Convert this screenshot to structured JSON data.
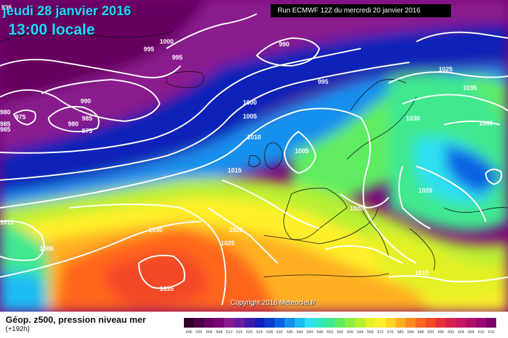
{
  "header": {
    "date": "jeudi 28 janvier 2016",
    "time": "13:00 locale",
    "run": "Run ECMWF 12Z du mercredi 20 janvier 2016"
  },
  "map": {
    "copyright": "Copyright 2016 Meteociel.fr",
    "pressure_labels": [
      "995",
      "1000",
      "995",
      "990",
      "995",
      "1025",
      "990",
      "985",
      "975",
      "980",
      "985",
      "975",
      "1000",
      "1005",
      "1035",
      "1030",
      "1040",
      "1010",
      "1005",
      "1015",
      "1020",
      "1020",
      "1030",
      "1020",
      "1025",
      "1015",
      "1005",
      "1035",
      "1010",
      "995",
      "980",
      "985"
    ],
    "geopotential_scale": {
      "labels": [
        "496",
        "500",
        "504",
        "508",
        "512",
        "516",
        "520",
        "524",
        "528",
        "532",
        "536",
        "540",
        "544",
        "548",
        "552",
        "556",
        "560",
        "564",
        "568",
        "572",
        "576",
        "580",
        "584",
        "588",
        "592",
        "596",
        "600",
        "604",
        "608",
        "612",
        "616"
      ],
      "colors": [
        "#300028",
        "#4b0046",
        "#66005e",
        "#7a0078",
        "#8a1b8e",
        "#6a1aa0",
        "#3d1aa5",
        "#1020b8",
        "#0a3ad0",
        "#0a62e4",
        "#1590ee",
        "#1cbcf4",
        "#2ee0f0",
        "#30e8c0",
        "#40e890",
        "#60ec60",
        "#8cf040",
        "#b8f030",
        "#e4f028",
        "#fff02a",
        "#ffd424",
        "#ffb020",
        "#ff8a1e",
        "#ff661e",
        "#f44a26",
        "#e8303a",
        "#d82050",
        "#c81860",
        "#b0106a",
        "#980870",
        "#7a0068"
      ]
    }
  },
  "footer": {
    "product": "Géop. z500, pression niveau mer",
    "lead_time": "(+192h)"
  }
}
